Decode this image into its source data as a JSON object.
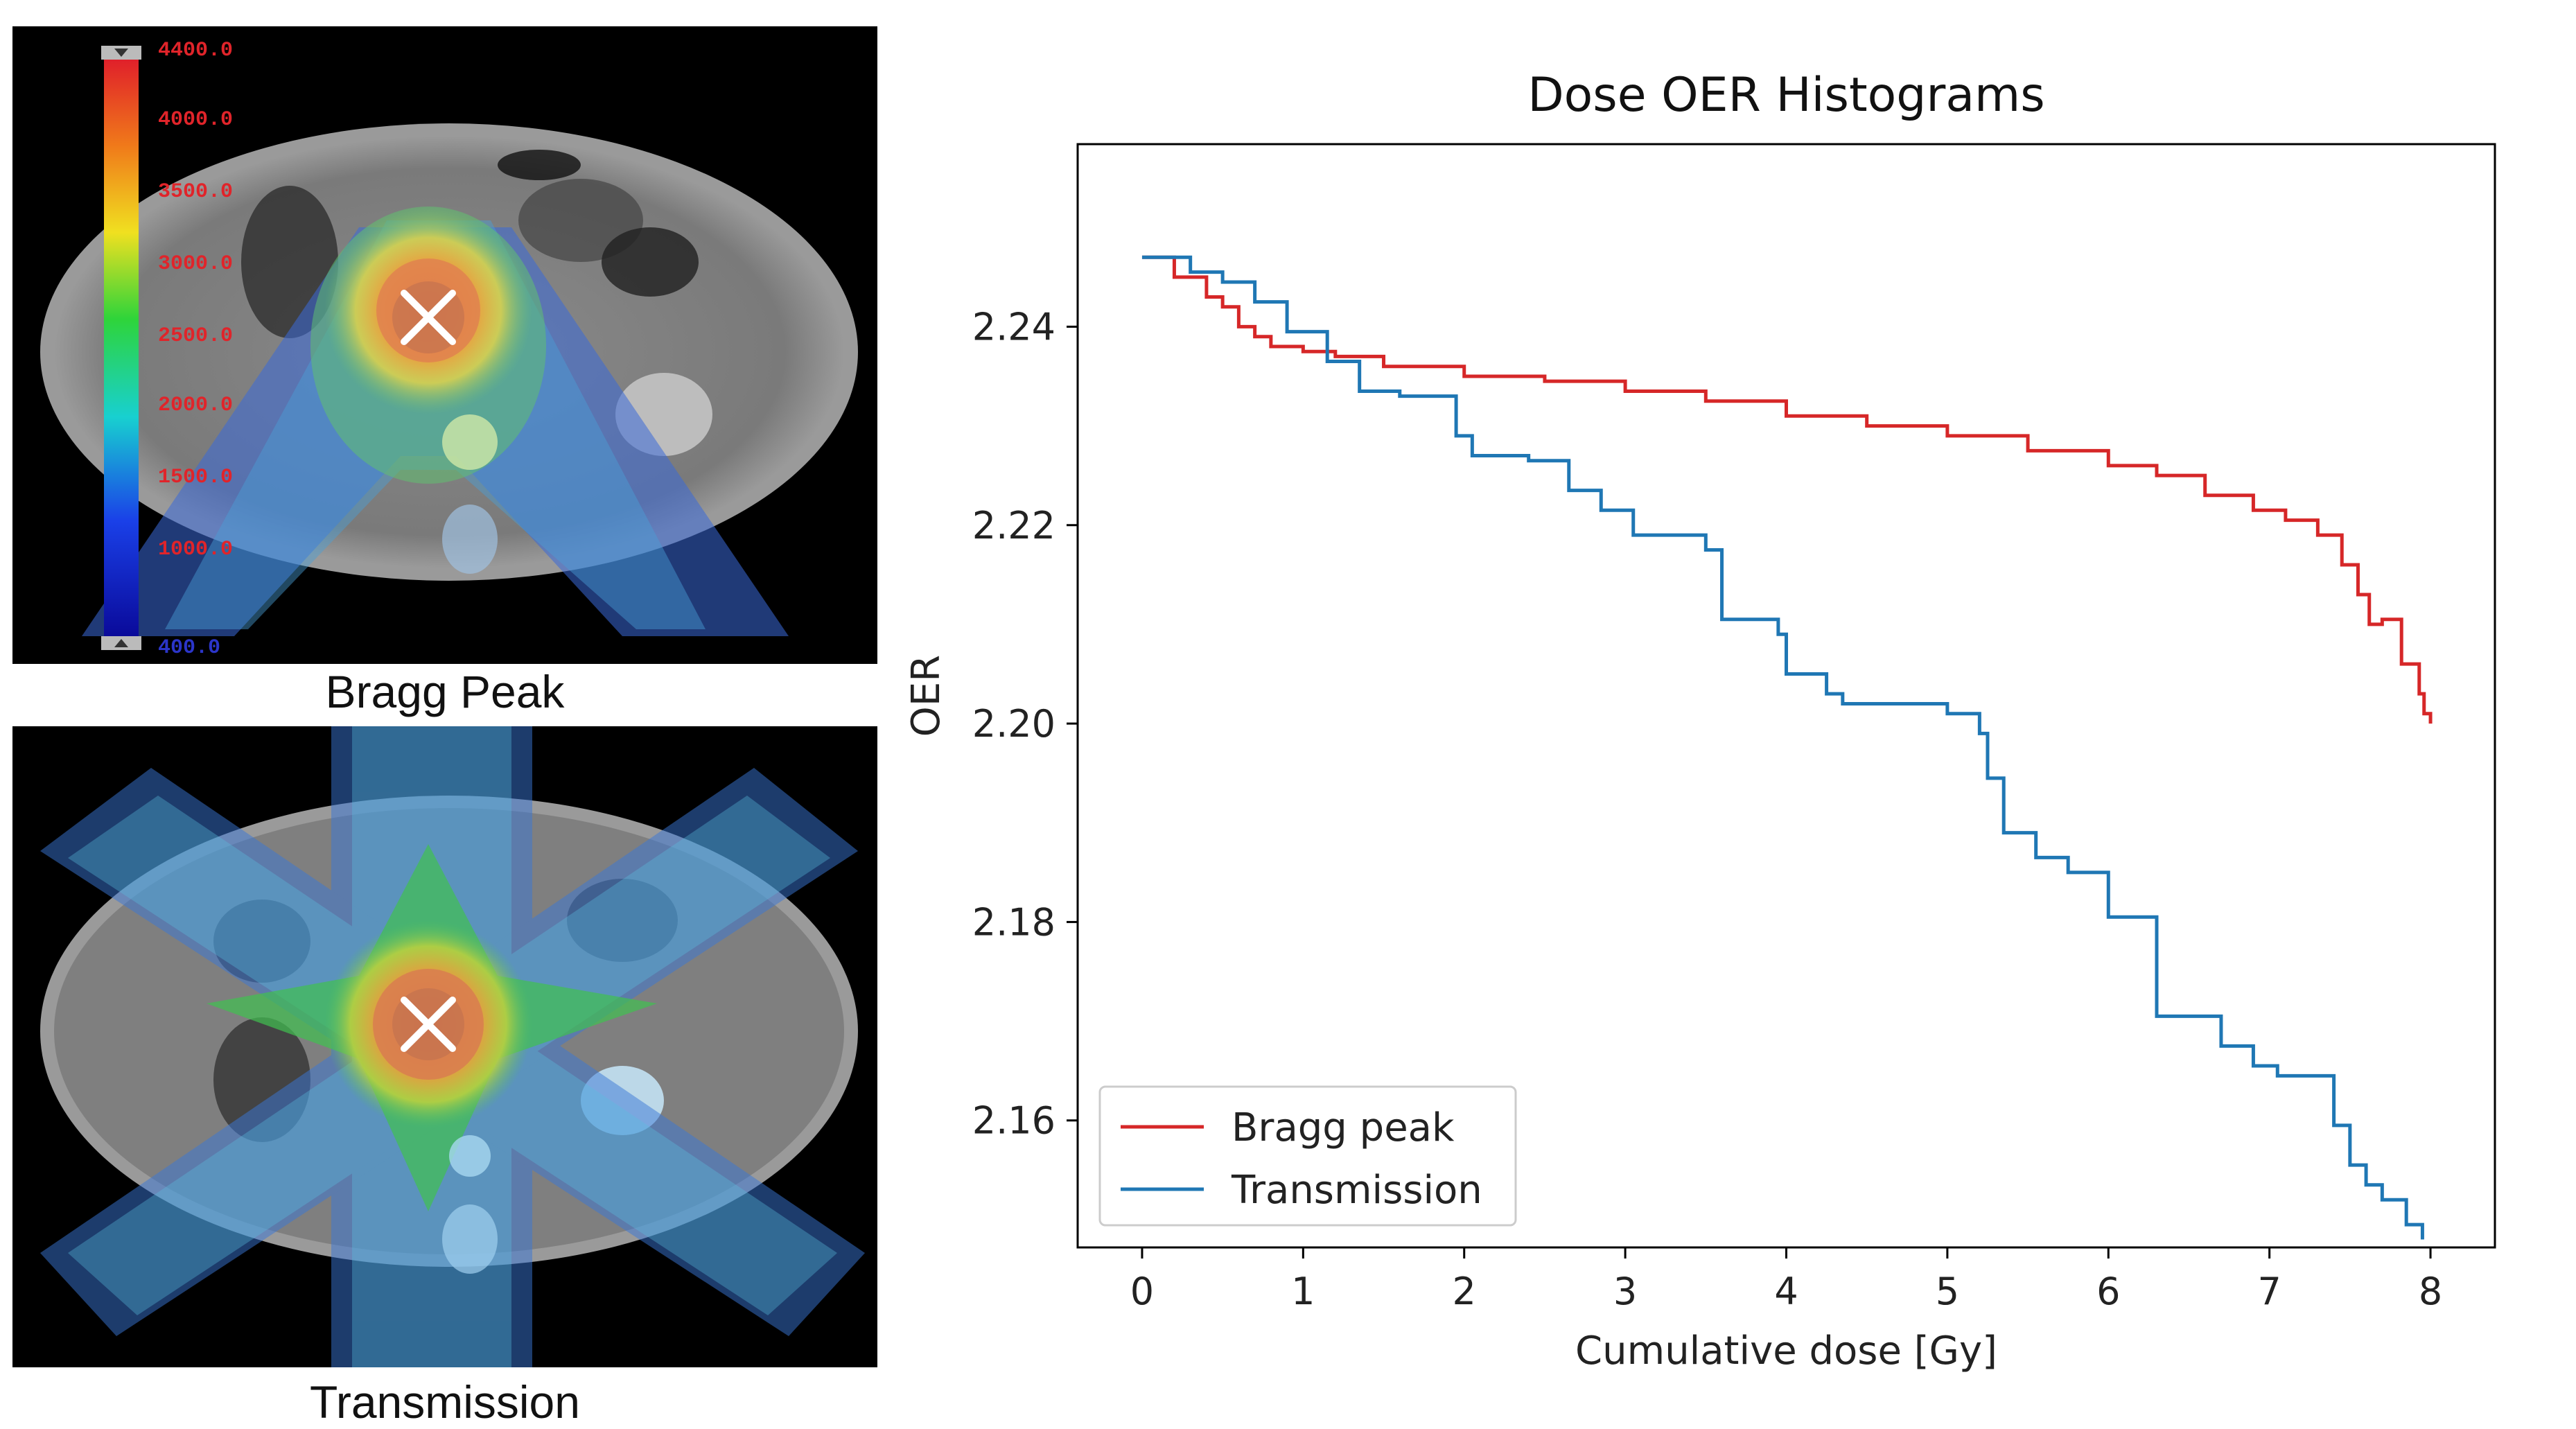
{
  "panels": {
    "top": {
      "caption": "Bragg Peak",
      "colorbar": {
        "labels": [
          "4400.0",
          "4000.0",
          "3500.0",
          "3000.0",
          "2500.0",
          "2000.0",
          "1500.0",
          "1000.0",
          "400.0"
        ],
        "label_color": "#e0242a",
        "bottom_label_color": "#2b35c9"
      }
    },
    "bottom": {
      "caption": "Transmission"
    }
  },
  "colors": {
    "bragg": "#d62728",
    "transmission": "#1f77b4"
  },
  "chart_data": {
    "type": "line",
    "title": "Dose OER Histograms",
    "xlabel": "Cumulative dose [Gy]",
    "ylabel": "OER",
    "xlim": [
      -0.4,
      8.4
    ],
    "ylim": [
      2.1472,
      2.2584
    ],
    "xticks": [
      0,
      1,
      2,
      3,
      4,
      5,
      6,
      7,
      8
    ],
    "yticks": [
      2.16,
      2.18,
      2.2,
      2.22,
      2.24
    ],
    "ytick_labels": [
      "2.16",
      "2.18",
      "2.20",
      "2.22",
      "2.24"
    ],
    "grid": false,
    "legend": "lower-left",
    "series": [
      {
        "name": "Bragg peak",
        "color": "#d62728",
        "x": [
          0,
          0.2,
          0.4,
          0.5,
          0.6,
          0.7,
          0.8,
          1.0,
          1.2,
          1.5,
          2.0,
          2.5,
          3.0,
          3.5,
          4.0,
          4.5,
          5.0,
          5.5,
          6.0,
          6.3,
          6.6,
          6.9,
          7.1,
          7.3,
          7.45,
          7.55,
          7.62,
          7.68,
          7.7,
          7.8,
          7.82,
          7.9,
          7.93,
          7.96,
          8.0
        ],
        "y": [
          2.247,
          2.245,
          2.243,
          2.242,
          2.24,
          2.239,
          2.238,
          2.2375,
          2.237,
          2.236,
          2.235,
          2.2345,
          2.2335,
          2.2325,
          2.231,
          2.23,
          2.229,
          2.2275,
          2.226,
          2.225,
          2.223,
          2.2215,
          2.2205,
          2.219,
          2.216,
          2.213,
          2.21,
          2.21,
          2.2105,
          2.2105,
          2.206,
          2.206,
          2.203,
          2.201,
          2.2
        ]
      },
      {
        "name": "Transmission",
        "color": "#1f77b4",
        "x": [
          0,
          0.3,
          0.5,
          0.7,
          0.9,
          1.15,
          1.35,
          1.6,
          1.95,
          2.05,
          2.4,
          2.65,
          2.85,
          3.05,
          3.5,
          3.6,
          3.95,
          4.0,
          4.25,
          4.35,
          5.0,
          5.2,
          5.25,
          5.35,
          5.55,
          5.75,
          6.0,
          6.1,
          6.3,
          6.45,
          6.5,
          6.7,
          6.9,
          7.05,
          7.2,
          7.4,
          7.5,
          7.6,
          7.7,
          7.85,
          7.95
        ],
        "y": [
          2.247,
          2.2455,
          2.2445,
          2.2425,
          2.2395,
          2.2365,
          2.2335,
          2.233,
          2.229,
          2.227,
          2.2265,
          2.2235,
          2.2215,
          2.219,
          2.2175,
          2.2105,
          2.209,
          2.205,
          2.203,
          2.202,
          2.201,
          2.199,
          2.1945,
          2.189,
          2.1865,
          2.185,
          2.1805,
          2.1805,
          2.1705,
          2.1705,
          2.1705,
          2.1675,
          2.1655,
          2.1645,
          2.1645,
          2.1595,
          2.1555,
          2.1535,
          2.152,
          2.1495,
          2.148
        ]
      }
    ]
  }
}
